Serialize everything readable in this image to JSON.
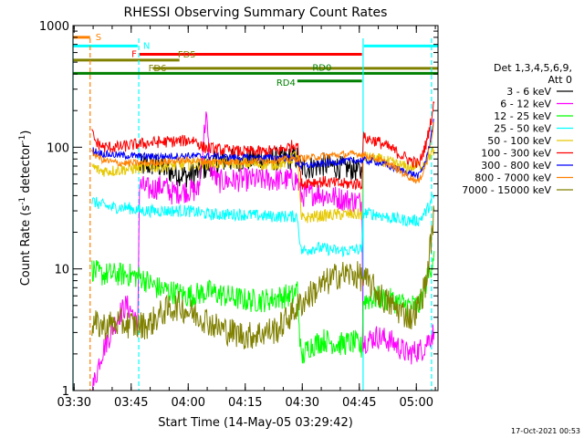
{
  "chart_data": {
    "type": "line",
    "title": "RHESSI Observing Summary Count Rates",
    "xlabel": "Start Time (14-May-05 03:29:42)",
    "ylabel_main": "Count Rate (s",
    "ylabel_sup": "-1",
    "ylabel_rest": " detector",
    "ylabel_end": ")",
    "x_unit": "minutes after 03:29:42",
    "xlim": [
      0,
      96
    ],
    "ylim": [
      1,
      1000
    ],
    "yscale": "log",
    "x_ticks": [
      {
        "t": 0.3,
        "label": "03:30"
      },
      {
        "t": 15.3,
        "label": "03:45"
      },
      {
        "t": 30.3,
        "label": "04:00"
      },
      {
        "t": 45.3,
        "label": "04:15"
      },
      {
        "t": 60.3,
        "label": "04:30"
      },
      {
        "t": 75.3,
        "label": "04:45"
      },
      {
        "t": 90.3,
        "label": "05:00"
      }
    ],
    "y_ticks": [
      {
        "v": 1,
        "label": "1"
      },
      {
        "v": 10,
        "label": "10"
      },
      {
        "v": 100,
        "label": "100"
      },
      {
        "v": 1000,
        "label": "1000"
      }
    ],
    "legend": {
      "position": "right",
      "header": [
        "Det 1,3,4,5,6,9,",
        "Att 0"
      ],
      "entries": [
        {
          "label": "3 - 6 keV",
          "color": "#000000"
        },
        {
          "label": "6 - 12 keV",
          "color": "#ff00ff"
        },
        {
          "label": "12 - 25 keV",
          "color": "#00ff00"
        },
        {
          "label": "25 - 50 keV",
          "color": "#00ffff"
        },
        {
          "label": "50 - 100 keV",
          "color": "#e6c800"
        },
        {
          "label": "100 - 300 keV",
          "color": "#ff0000"
        },
        {
          "label": "300 - 800 keV",
          "color": "#0000ff"
        },
        {
          "label": "800 - 7000 keV",
          "color": "#ff8000"
        },
        {
          "label": "7000 - 15000 keV",
          "color": "#808000"
        }
      ]
    },
    "flag_bars": [
      {
        "label": "S",
        "color": "#ff8000",
        "level": 800,
        "t0": 0,
        "t1": 4.5
      },
      {
        "label": "N",
        "color": "#00ffff",
        "level": 680,
        "t0": 0,
        "t1": 17,
        "t2": 76.5,
        "t3": 96
      },
      {
        "label": "F",
        "color": "#ff0000",
        "level": 580,
        "t0": 17.5,
        "t1": 76
      },
      {
        "label": "FD5",
        "color": "#808000",
        "level": 520,
        "t0": 0,
        "t1": 28
      },
      {
        "label": "FD6",
        "color": "#808000",
        "level": 445,
        "t0": 21,
        "t1": 96
      },
      {
        "label": "RD0",
        "color": "#008000",
        "level": 405,
        "t0": 0,
        "t1": 96
      },
      {
        "label": "RD4",
        "color": "#008000",
        "level": 350,
        "t0": 59,
        "t1": 76
      }
    ],
    "vertical_markers": [
      {
        "t": 0,
        "color": "#00ffff",
        "style": "solid"
      },
      {
        "t": 4.5,
        "color": "#ff8000",
        "style": "dashed"
      },
      {
        "t": 17.3,
        "color": "#00ffff",
        "style": "dashed"
      },
      {
        "t": 76.3,
        "color": "#00ffff",
        "style": "solid"
      },
      {
        "t": 94.3,
        "color": "#00ffff",
        "style": "dashed"
      }
    ],
    "series": [
      {
        "name": "3 - 6 keV",
        "color": "#000000",
        "noise": 0.1,
        "points": [
          [
            17.5,
            70
          ],
          [
            22,
            72
          ],
          [
            26,
            62
          ],
          [
            30,
            58
          ],
          [
            33,
            62
          ],
          [
            36,
            72
          ],
          [
            40,
            78
          ],
          [
            48,
            80
          ],
          [
            56,
            80
          ],
          [
            59,
            82
          ],
          [
            60,
            68
          ],
          [
            62,
            68
          ],
          [
            66,
            72
          ],
          [
            70,
            68
          ],
          [
            74,
            66
          ],
          [
            76,
            62
          ]
        ]
      },
      {
        "name": "6 - 12 keV",
        "color": "#ff00ff",
        "noise": 0.1,
        "points": [
          [
            5,
            1
          ],
          [
            6,
            1.3
          ],
          [
            7,
            1.8
          ],
          [
            8,
            2.2
          ],
          [
            9,
            2.6
          ],
          [
            10,
            3
          ],
          [
            12,
            4.2
          ],
          [
            14,
            5
          ],
          [
            15.5,
            4.5
          ],
          [
            17,
            3.2
          ],
          [
            17.5,
            48
          ],
          [
            20,
            45
          ],
          [
            24,
            48
          ],
          [
            26,
            42
          ],
          [
            30,
            44
          ],
          [
            33,
            44
          ],
          [
            34,
            90
          ],
          [
            35,
            190
          ],
          [
            36,
            70
          ],
          [
            38,
            52
          ],
          [
            44,
            54
          ],
          [
            52,
            54
          ],
          [
            59,
            54
          ],
          [
            60,
            40
          ],
          [
            64,
            42
          ],
          [
            70,
            38
          ],
          [
            74,
            36
          ],
          [
            76,
            35
          ],
          [
            76.3,
            2.5
          ],
          [
            80,
            2.8
          ],
          [
            84,
            2.5
          ],
          [
            88,
            2
          ],
          [
            92,
            2.2
          ],
          [
            94,
            2.8
          ],
          [
            95,
            3
          ]
        ]
      },
      {
        "name": "12 - 25 keV",
        "color": "#00ff00",
        "noise": 0.1,
        "points": [
          [
            5,
            10
          ],
          [
            7,
            9
          ],
          [
            10,
            9
          ],
          [
            14,
            9
          ],
          [
            18,
            8.5
          ],
          [
            22,
            7
          ],
          [
            26,
            6.5
          ],
          [
            30,
            6
          ],
          [
            36,
            6.5
          ],
          [
            40,
            6
          ],
          [
            46,
            5.5
          ],
          [
            50,
            5.5
          ],
          [
            56,
            6
          ],
          [
            58,
            6
          ],
          [
            59,
            7
          ],
          [
            60,
            1.8
          ],
          [
            62,
            2.3
          ],
          [
            66,
            2.6
          ],
          [
            70,
            2.4
          ],
          [
            74,
            2.5
          ],
          [
            76,
            2.2
          ],
          [
            76.3,
            5.5
          ],
          [
            80,
            5.8
          ],
          [
            84,
            5.5
          ],
          [
            88,
            5
          ],
          [
            91,
            5
          ],
          [
            92,
            6
          ],
          [
            93,
            8
          ],
          [
            94,
            10
          ],
          [
            95,
            14
          ]
        ]
      },
      {
        "name": "25 - 50 keV",
        "color": "#00ffff",
        "noise": 0.05,
        "points": [
          [
            5,
            36
          ],
          [
            7,
            34
          ],
          [
            10,
            32
          ],
          [
            14,
            32
          ],
          [
            18,
            30
          ],
          [
            24,
            30
          ],
          [
            30,
            30
          ],
          [
            36,
            28
          ],
          [
            44,
            28
          ],
          [
            52,
            27
          ],
          [
            59,
            27
          ],
          [
            60,
            14
          ],
          [
            64,
            15
          ],
          [
            70,
            14
          ],
          [
            76,
            14.5
          ],
          [
            76.3,
            29
          ],
          [
            80,
            28
          ],
          [
            84,
            26
          ],
          [
            88,
            25
          ],
          [
            91,
            25
          ],
          [
            93,
            30
          ],
          [
            95,
            40
          ]
        ]
      },
      {
        "name": "50 - 100 keV",
        "color": "#e6c800",
        "noise": 0.05,
        "points": [
          [
            5,
            70
          ],
          [
            7,
            64
          ],
          [
            10,
            64
          ],
          [
            14,
            66
          ],
          [
            18,
            68
          ],
          [
            24,
            70
          ],
          [
            30,
            72
          ],
          [
            36,
            74
          ],
          [
            44,
            74
          ],
          [
            52,
            72
          ],
          [
            56,
            75
          ],
          [
            59,
            88
          ],
          [
            60,
            26
          ],
          [
            64,
            27
          ],
          [
            70,
            28
          ],
          [
            76,
            28
          ],
          [
            76.3,
            82
          ],
          [
            80,
            80
          ],
          [
            84,
            74
          ],
          [
            88,
            68
          ],
          [
            92,
            72
          ],
          [
            95,
            95
          ]
        ]
      },
      {
        "name": "100 - 300 keV",
        "color": "#ff0000",
        "noise": 0.05,
        "points": [
          [
            5,
            130
          ],
          [
            6,
            110
          ],
          [
            8,
            100
          ],
          [
            12,
            100
          ],
          [
            16,
            105
          ],
          [
            22,
            110
          ],
          [
            28,
            112
          ],
          [
            32,
            115
          ],
          [
            34,
            100
          ],
          [
            38,
            96
          ],
          [
            44,
            92
          ],
          [
            50,
            92
          ],
          [
            54,
            94
          ],
          [
            58,
            104
          ],
          [
            59,
            110
          ],
          [
            60,
            50
          ],
          [
            62,
            52
          ],
          [
            66,
            52
          ],
          [
            70,
            50
          ],
          [
            74,
            50
          ],
          [
            76,
            50
          ],
          [
            76.3,
            120
          ],
          [
            80,
            112
          ],
          [
            84,
            96
          ],
          [
            88,
            80
          ],
          [
            91,
            72
          ],
          [
            93,
            110
          ],
          [
            95,
            230
          ]
        ]
      },
      {
        "name": "300 - 800 keV",
        "color": "#0000ff",
        "noise": 0.03,
        "points": [
          [
            5,
            95
          ],
          [
            8,
            88
          ],
          [
            12,
            86
          ],
          [
            18,
            84
          ],
          [
            24,
            84
          ],
          [
            30,
            85
          ],
          [
            36,
            84
          ],
          [
            44,
            82
          ],
          [
            52,
            82
          ],
          [
            58,
            82
          ],
          [
            60,
            70
          ],
          [
            64,
            72
          ],
          [
            70,
            76
          ],
          [
            74,
            78
          ],
          [
            76,
            78
          ],
          [
            80,
            76
          ],
          [
            84,
            68
          ],
          [
            88,
            62
          ],
          [
            91,
            58
          ],
          [
            93,
            80
          ],
          [
            95,
            170
          ]
        ]
      },
      {
        "name": "800 - 7000 keV",
        "color": "#ff8000",
        "noise": 0.03,
        "points": [
          [
            5,
            90
          ],
          [
            8,
            78
          ],
          [
            12,
            74
          ],
          [
            18,
            74
          ],
          [
            24,
            76
          ],
          [
            30,
            78
          ],
          [
            36,
            76
          ],
          [
            44,
            76
          ],
          [
            52,
            78
          ],
          [
            58,
            80
          ],
          [
            62,
            82
          ],
          [
            68,
            86
          ],
          [
            74,
            88
          ],
          [
            76,
            88
          ],
          [
            80,
            80
          ],
          [
            84,
            70
          ],
          [
            88,
            58
          ],
          [
            91,
            52
          ],
          [
            93,
            75
          ],
          [
            95,
            160
          ]
        ]
      },
      {
        "name": "7000 - 15000 keV",
        "color": "#808000",
        "noise": 0.12,
        "points": [
          [
            5,
            3.5
          ],
          [
            8,
            3.4
          ],
          [
            12,
            3.6
          ],
          [
            15,
            3.5
          ],
          [
            17,
            3.4
          ],
          [
            20,
            3.5
          ],
          [
            24,
            4.5
          ],
          [
            28,
            5
          ],
          [
            30,
            4.5
          ],
          [
            34,
            4
          ],
          [
            38,
            3.3
          ],
          [
            42,
            3
          ],
          [
            46,
            2.8
          ],
          [
            50,
            3
          ],
          [
            54,
            3.2
          ],
          [
            58,
            4.5
          ],
          [
            62,
            6
          ],
          [
            66,
            7.5
          ],
          [
            70,
            9
          ],
          [
            74,
            9
          ],
          [
            76,
            8.5
          ],
          [
            78,
            7.5
          ],
          [
            82,
            5.5
          ],
          [
            86,
            4.5
          ],
          [
            89,
            4
          ],
          [
            91,
            5
          ],
          [
            93,
            8
          ],
          [
            95,
            30
          ]
        ]
      }
    ]
  },
  "footer": {
    "timestamp": "17-Oct-2021 00:53"
  }
}
